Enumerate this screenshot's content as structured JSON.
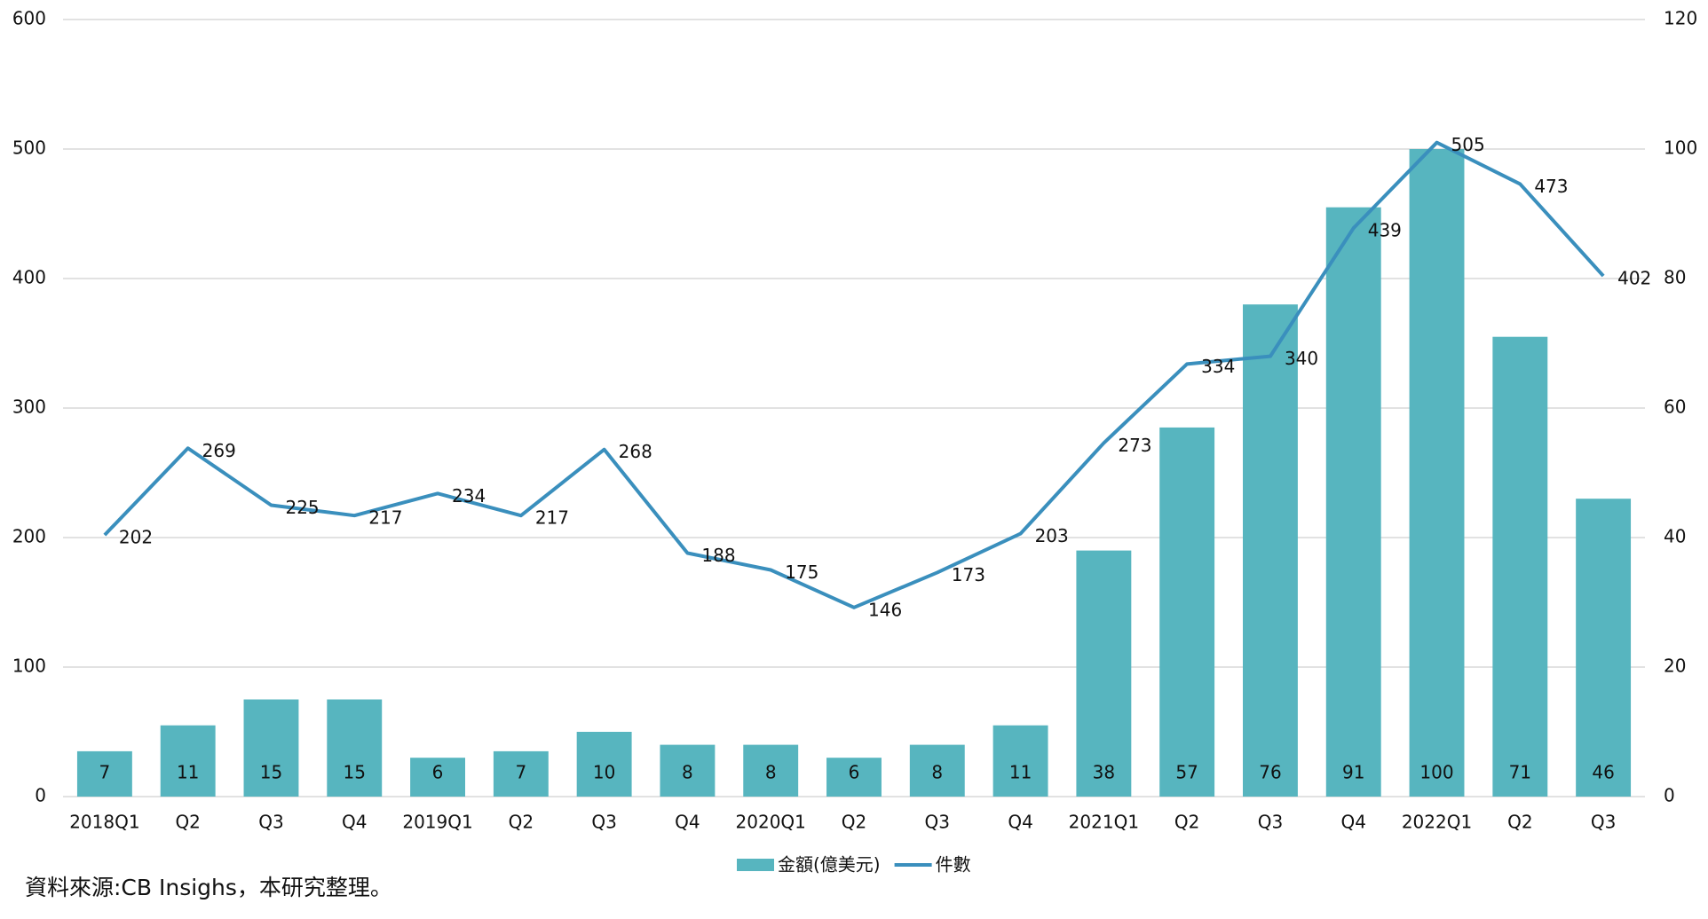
{
  "chart_data": {
    "type": "combo",
    "categories": [
      "2018Q1",
      "Q2",
      "Q3",
      "Q4",
      "2019Q1",
      "Q2",
      "Q3",
      "Q4",
      "2020Q1",
      "Q2",
      "Q3",
      "Q4",
      "2021Q1",
      "Q2",
      "Q3",
      "Q4",
      "2022Q1",
      "Q2",
      "Q3"
    ],
    "series": [
      {
        "name": "金額(億美元)",
        "type": "bar",
        "axis": "y2",
        "color": "#57b5bf",
        "values": [
          7,
          11,
          15,
          15,
          6,
          7,
          10,
          8,
          8,
          6,
          8,
          11,
          38,
          57,
          76,
          91,
          100,
          71,
          46
        ]
      },
      {
        "name": "件數",
        "type": "line",
        "color": "#3a8fbd",
        "values": [
          202,
          269,
          225,
          217,
          234,
          217,
          268,
          188,
          175,
          146,
          173,
          203,
          273,
          334,
          340,
          439,
          505,
          473,
          402
        ]
      }
    ],
    "ylim": [
      0,
      600
    ],
    "yticks": [
      0,
      100,
      200,
      300,
      400,
      500,
      600
    ],
    "y2lim": [
      0,
      120
    ],
    "y2ticks": [
      0,
      20,
      40,
      60,
      80,
      100,
      120
    ],
    "grid": true,
    "legend": "bottom",
    "source": "資料來源:CB Insighs，本研究整理。"
  }
}
